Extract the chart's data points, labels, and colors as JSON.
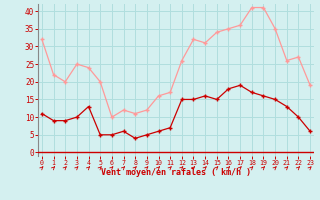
{
  "hours": [
    0,
    1,
    2,
    3,
    4,
    5,
    6,
    7,
    8,
    9,
    10,
    11,
    12,
    13,
    14,
    15,
    16,
    17,
    18,
    19,
    20,
    21,
    22,
    23
  ],
  "wind_avg": [
    11,
    9,
    9,
    10,
    13,
    5,
    5,
    6,
    4,
    5,
    6,
    7,
    15,
    15,
    16,
    15,
    18,
    19,
    17,
    16,
    15,
    13,
    10,
    6
  ],
  "wind_gust": [
    32,
    22,
    20,
    25,
    24,
    20,
    10,
    12,
    11,
    12,
    16,
    17,
    26,
    32,
    31,
    34,
    35,
    36,
    41,
    41,
    35,
    26,
    27,
    19
  ],
  "avg_color": "#cc0000",
  "gust_color": "#ff9999",
  "bg_color": "#d4f0f0",
  "grid_color": "#b0dede",
  "xlabel": "Vent moyen/en rafales ( km/h )",
  "xlabel_color": "#cc0000",
  "tick_color": "#cc0000",
  "ylim": [
    -1,
    42
  ],
  "yticks": [
    0,
    5,
    10,
    15,
    20,
    25,
    30,
    35,
    40
  ],
  "yticklabels": [
    "0",
    "5",
    "10",
    "15",
    "20",
    "25",
    "30",
    "35",
    "40"
  ]
}
